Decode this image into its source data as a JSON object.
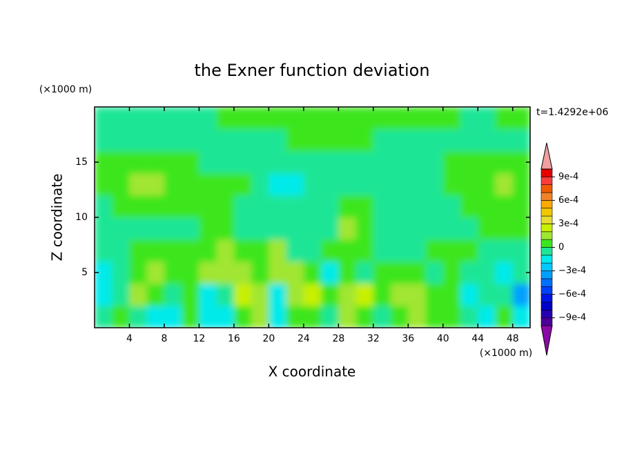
{
  "chart_data": {
    "type": "contour",
    "title": "the Exner function deviation",
    "x_label": "X coordinate",
    "y_label": "Z coordinate",
    "x_unit": "(×1000 m)",
    "y_unit": "(×1000 m)",
    "annotation": "t=1.4292e+06",
    "xlim": [
      0,
      50
    ],
    "ylim": [
      0,
      20
    ],
    "xticks": [
      4,
      8,
      12,
      16,
      20,
      24,
      28,
      32,
      36,
      40,
      44,
      48
    ],
    "yticks": [
      5,
      10,
      15
    ],
    "x": [
      1,
      3,
      5,
      7,
      9,
      11,
      13,
      15,
      17,
      19,
      21,
      23,
      25,
      27,
      29,
      31,
      33,
      35,
      37,
      39,
      41,
      43,
      45,
      47,
      49
    ],
    "y": [
      1,
      3,
      5,
      7,
      9,
      11,
      13,
      15,
      17,
      19
    ],
    "z": [
      [
        -5e-05,
        5e-05,
        -5e-05,
        -0.00015,
        -0.00015,
        5e-05,
        -0.00015,
        -0.00015,
        5e-05,
        0.00015,
        -0.00015,
        5e-05,
        5e-05,
        -5e-05,
        0.00015,
        5e-05,
        -5e-05,
        5e-05,
        0.00015,
        5e-05,
        5e-05,
        -5e-05,
        -0.00015,
        5e-05,
        -0.00015
      ],
      [
        -0.00015,
        -5e-05,
        0.00015,
        5e-05,
        -5e-05,
        5e-05,
        -0.00015,
        -5e-05,
        0.00025,
        0.00015,
        -0.00015,
        0.00015,
        0.00025,
        5e-05,
        0.00015,
        0.00025,
        5e-05,
        0.00015,
        0.00015,
        5e-05,
        5e-05,
        -0.00015,
        -5e-05,
        -5e-05,
        -0.00035
      ],
      [
        -0.00015,
        -5e-05,
        5e-05,
        0.00015,
        5e-05,
        5e-05,
        0.00015,
        0.00015,
        0.00015,
        5e-05,
        0.00015,
        0.00015,
        5e-05,
        -0.00015,
        5e-05,
        -5e-05,
        5e-05,
        5e-05,
        5e-05,
        -5e-05,
        5e-05,
        -5e-05,
        -5e-05,
        -0.00015,
        -5e-05
      ],
      [
        -5e-05,
        -5e-05,
        5e-05,
        5e-05,
        5e-05,
        5e-05,
        5e-05,
        0.00015,
        5e-05,
        5e-05,
        0.00015,
        -5e-05,
        -5e-05,
        5e-05,
        5e-05,
        5e-05,
        -5e-05,
        -5e-05,
        -5e-05,
        5e-05,
        5e-05,
        5e-05,
        -5e-05,
        -5e-05,
        -5e-05
      ],
      [
        -5e-05,
        -5e-05,
        -5e-05,
        -5e-05,
        -5e-05,
        -5e-05,
        5e-05,
        5e-05,
        -5e-05,
        -5e-05,
        -5e-05,
        -5e-05,
        -5e-05,
        -5e-05,
        0.00015,
        5e-05,
        -5e-05,
        -5e-05,
        -5e-05,
        -5e-05,
        -5e-05,
        -5e-05,
        5e-05,
        5e-05,
        5e-05
      ],
      [
        -5e-05,
        5e-05,
        5e-05,
        5e-05,
        5e-05,
        5e-05,
        5e-05,
        5e-05,
        -5e-05,
        -5e-05,
        -5e-05,
        -5e-05,
        -5e-05,
        -5e-05,
        5e-05,
        5e-05,
        -5e-05,
        -5e-05,
        -5e-05,
        -5e-05,
        -5e-05,
        5e-05,
        5e-05,
        5e-05,
        5e-05
      ],
      [
        5e-05,
        5e-05,
        0.00015,
        0.00015,
        5e-05,
        5e-05,
        5e-05,
        5e-05,
        5e-05,
        -5e-05,
        -0.00015,
        -0.00015,
        -5e-05,
        -5e-05,
        -5e-05,
        -5e-05,
        -5e-05,
        -5e-05,
        -5e-05,
        -5e-05,
        5e-05,
        5e-05,
        5e-05,
        0.00015,
        5e-05
      ],
      [
        5e-05,
        5e-05,
        5e-05,
        5e-05,
        5e-05,
        5e-05,
        -5e-05,
        -5e-05,
        -5e-05,
        -5e-05,
        -5e-05,
        -5e-05,
        -5e-05,
        -5e-05,
        -5e-05,
        -5e-05,
        -5e-05,
        -5e-05,
        -5e-05,
        -5e-05,
        5e-05,
        5e-05,
        5e-05,
        5e-05,
        5e-05
      ],
      [
        -5e-05,
        -5e-05,
        -5e-05,
        -5e-05,
        -5e-05,
        -5e-05,
        -5e-05,
        -5e-05,
        -5e-05,
        -5e-05,
        -5e-05,
        5e-05,
        5e-05,
        5e-05,
        5e-05,
        5e-05,
        -5e-05,
        -5e-05,
        -5e-05,
        -5e-05,
        -5e-05,
        -5e-05,
        -5e-05,
        -5e-05,
        -5e-05
      ],
      [
        -5e-05,
        -5e-05,
        -5e-05,
        -5e-05,
        -5e-05,
        -5e-05,
        -5e-05,
        5e-05,
        5e-05,
        5e-05,
        5e-05,
        5e-05,
        5e-05,
        5e-05,
        5e-05,
        5e-05,
        5e-05,
        5e-05,
        5e-05,
        5e-05,
        5e-05,
        -5e-05,
        -5e-05,
        5e-05,
        5e-05
      ]
    ],
    "levels": [
      -0.001,
      -0.0009,
      -0.0008,
      -0.0007,
      -0.0006,
      -0.0005,
      -0.0004,
      -0.0003,
      -0.0002,
      -0.0001,
      0,
      0.0001,
      0.0002,
      0.0003,
      0.0004,
      0.0005,
      0.0006,
      0.0007,
      0.0008,
      0.0009,
      0.001
    ],
    "colors": [
      "#8a0aa8",
      "#4b0096",
      "#2800b4",
      "#0000c8",
      "#0014e6",
      "#0040ff",
      "#0070ff",
      "#00a0ff",
      "#00c8ff",
      "#00eaea",
      "#1ee696",
      "#3ce61e",
      "#a0e632",
      "#c8f000",
      "#e6dc32",
      "#f0c800",
      "#faaa00",
      "#f08228",
      "#f05a00",
      "#fa3c3c",
      "#e60000",
      "#f0a0a0"
    ],
    "colorbar_ticks": [
      {
        "value": 0.0009,
        "label": "9e-4"
      },
      {
        "value": 0.0006,
        "label": "6e-4"
      },
      {
        "value": 0.0003,
        "label": "3e-4"
      },
      0,
      {
        "value": -0.0003,
        "label": "−3e-4"
      },
      {
        "value": -0.0006,
        "label": "−6e-4"
      },
      {
        "value": -0.0009,
        "label": "−9e-4"
      }
    ]
  }
}
